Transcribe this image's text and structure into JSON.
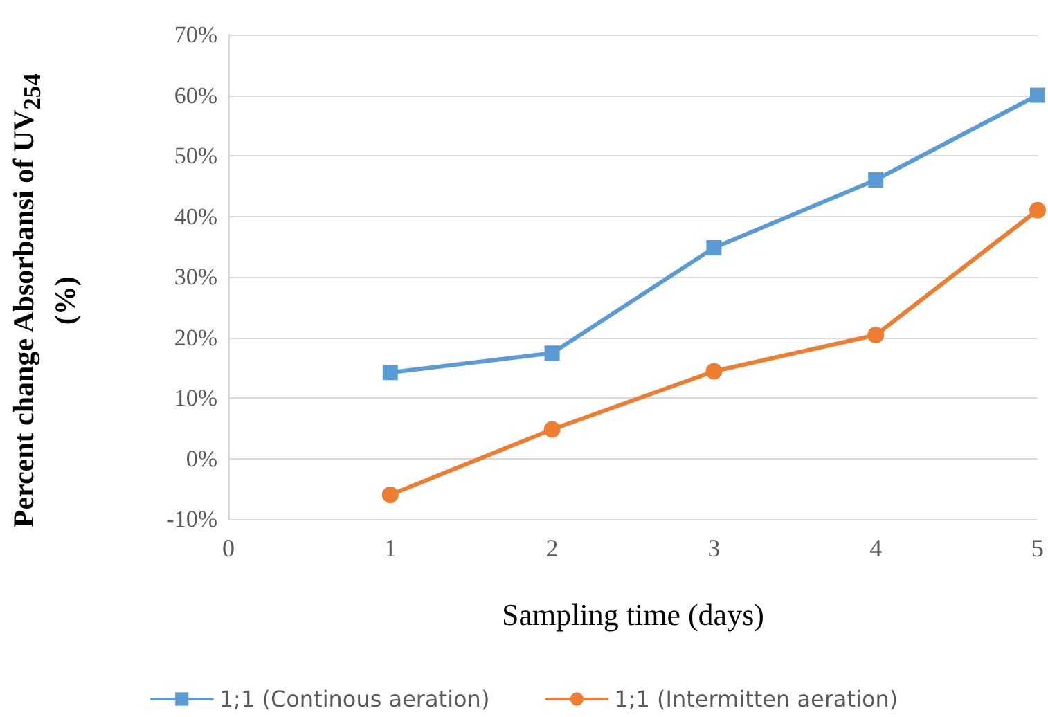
{
  "chart_data": {
    "type": "line",
    "xlabel": "Sampling time (days)",
    "ylabel": "Percent change Absorbansi of UV$_{254}$ (%)",
    "x": [
      1,
      2,
      3,
      4,
      5
    ],
    "series": [
      {
        "name": "1;1 (Continous aeration)",
        "color": "#5b9bd5",
        "marker": "square",
        "values": [
          14.2,
          17.4,
          34.8,
          46,
          60
        ]
      },
      {
        "name": "1;1 (Intermitten aeration)",
        "color": "#ed7d31",
        "marker": "circle",
        "values": [
          -6,
          4.8,
          14.4,
          20.4,
          41
        ]
      }
    ],
    "xlim": [
      0,
      5
    ],
    "xticks": [
      0,
      1,
      2,
      3,
      4,
      5
    ],
    "ylim": [
      -10,
      70
    ],
    "yticks": [
      {
        "value": -10,
        "label": "-10%"
      },
      {
        "value": 0,
        "label": "0%"
      },
      {
        "value": 10,
        "label": "10%"
      },
      {
        "value": 20,
        "label": "20%"
      },
      {
        "value": 30,
        "label": "30%"
      },
      {
        "value": 40,
        "label": "40%"
      },
      {
        "value": 50,
        "label": "50%"
      },
      {
        "value": 60,
        "label": "60%"
      },
      {
        "value": 70,
        "label": "70%"
      }
    ],
    "grid": "y",
    "legend": "bottom",
    "line_style": "solid"
  }
}
